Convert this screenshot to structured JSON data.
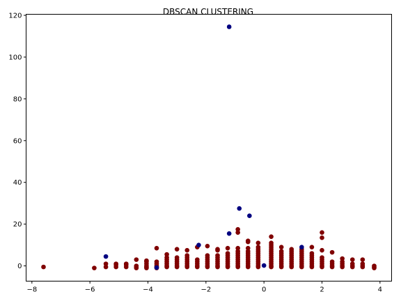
{
  "chart_data": {
    "type": "scatter",
    "title": "DBSCAN CLUSTERING",
    "xlabel": "",
    "ylabel": "",
    "xlim": [
      -8.2,
      4.4
    ],
    "ylim": [
      -7.3,
      120.5
    ],
    "xticks": [
      -8,
      -6,
      -4,
      -2,
      0,
      2,
      4
    ],
    "yticks": [
      0,
      20,
      40,
      60,
      80,
      100,
      120
    ],
    "xtick_labels": [
      "−8",
      "−6",
      "−4",
      "−2",
      "0",
      "2",
      "4"
    ],
    "ytick_labels": [
      "0",
      "20",
      "40",
      "60",
      "80",
      "100",
      "120"
    ],
    "grid": false,
    "legend": "none",
    "colors": {
      "cluster": "#800000",
      "noise": "#000080"
    },
    "series": [
      {
        "role": "cluster",
        "points": [
          [
            -7.6,
            -0.5
          ],
          [
            -5.85,
            -1
          ],
          [
            -5.45,
            -0.5
          ],
          [
            -5.45,
            1
          ],
          [
            -5.1,
            -0.5
          ],
          [
            -5.1,
            0.5
          ],
          [
            -5.1,
            1
          ],
          [
            -4.75,
            -0.5
          ],
          [
            -4.75,
            0.5
          ],
          [
            -4.75,
            1
          ],
          [
            -4.4,
            -1
          ],
          [
            -4.4,
            -0.5
          ],
          [
            -4.4,
            0
          ],
          [
            -4.4,
            3
          ],
          [
            -4.05,
            -1
          ],
          [
            -4.05,
            -0.5
          ],
          [
            -4.05,
            0
          ],
          [
            -4.05,
            1
          ],
          [
            -4.05,
            2
          ],
          [
            -4.05,
            2.5
          ],
          [
            -3.7,
            -1
          ],
          [
            -3.7,
            -0.5
          ],
          [
            -3.7,
            0
          ],
          [
            -3.7,
            1
          ],
          [
            -3.7,
            2
          ],
          [
            -3.7,
            8.5
          ],
          [
            -3.35,
            -0.5
          ],
          [
            -3.35,
            0
          ],
          [
            -3.35,
            1
          ],
          [
            -3.35,
            2
          ],
          [
            -3.35,
            3
          ],
          [
            -3.35,
            4
          ],
          [
            -3.35,
            5.5
          ],
          [
            -3.0,
            -0.5
          ],
          [
            -3.0,
            0
          ],
          [
            -3.0,
            1
          ],
          [
            -3.0,
            2
          ],
          [
            -3.0,
            3
          ],
          [
            -3.0,
            4
          ],
          [
            -3.0,
            8
          ],
          [
            -2.65,
            -0.5
          ],
          [
            -2.65,
            0
          ],
          [
            -2.65,
            1
          ],
          [
            -2.65,
            2
          ],
          [
            -2.65,
            3
          ],
          [
            -2.65,
            4
          ],
          [
            -2.65,
            5
          ],
          [
            -2.65,
            7.5
          ],
          [
            -2.3,
            -0.5
          ],
          [
            -2.3,
            0
          ],
          [
            -2.3,
            1
          ],
          [
            -2.3,
            2
          ],
          [
            -2.3,
            3
          ],
          [
            -2.3,
            9
          ],
          [
            -1.95,
            -0.5
          ],
          [
            -1.95,
            0
          ],
          [
            -1.95,
            1
          ],
          [
            -1.95,
            2
          ],
          [
            -1.95,
            3
          ],
          [
            -1.95,
            4
          ],
          [
            -1.95,
            5
          ],
          [
            -1.95,
            9.5
          ],
          [
            -1.6,
            -0.5
          ],
          [
            -1.6,
            0
          ],
          [
            -1.6,
            1
          ],
          [
            -1.6,
            2
          ],
          [
            -1.6,
            3
          ],
          [
            -1.6,
            4
          ],
          [
            -1.6,
            5
          ],
          [
            -1.6,
            7.5
          ],
          [
            -1.6,
            8
          ],
          [
            -1.25,
            -0.5
          ],
          [
            -1.25,
            0
          ],
          [
            -1.25,
            1
          ],
          [
            -1.25,
            2
          ],
          [
            -1.25,
            3
          ],
          [
            -1.25,
            4
          ],
          [
            -1.25,
            5
          ],
          [
            -1.25,
            6
          ],
          [
            -1.25,
            8.5
          ],
          [
            -0.9,
            -0.5
          ],
          [
            -0.9,
            0
          ],
          [
            -0.9,
            1
          ],
          [
            -0.9,
            2
          ],
          [
            -0.9,
            3
          ],
          [
            -0.9,
            4
          ],
          [
            -0.9,
            5
          ],
          [
            -0.9,
            6
          ],
          [
            -0.9,
            7
          ],
          [
            -0.9,
            8.5
          ],
          [
            -0.9,
            16
          ],
          [
            -0.9,
            17.5
          ],
          [
            -0.55,
            -0.5
          ],
          [
            -0.55,
            0
          ],
          [
            -0.55,
            1
          ],
          [
            -0.55,
            2
          ],
          [
            -0.55,
            3
          ],
          [
            -0.55,
            4
          ],
          [
            -0.55,
            5
          ],
          [
            -0.55,
            6
          ],
          [
            -0.55,
            7
          ],
          [
            -0.55,
            8.5
          ],
          [
            -0.55,
            11.5
          ],
          [
            -0.55,
            12
          ],
          [
            -0.2,
            -0.5
          ],
          [
            -0.2,
            0
          ],
          [
            -0.2,
            1
          ],
          [
            -0.2,
            2
          ],
          [
            -0.2,
            3
          ],
          [
            -0.2,
            4
          ],
          [
            -0.2,
            5
          ],
          [
            -0.2,
            6
          ],
          [
            -0.2,
            7
          ],
          [
            -0.2,
            8
          ],
          [
            -0.2,
            9
          ],
          [
            -0.2,
            11
          ],
          [
            0.25,
            -0.5
          ],
          [
            0.25,
            0
          ],
          [
            0.25,
            1
          ],
          [
            0.25,
            2
          ],
          [
            0.25,
            3
          ],
          [
            0.25,
            4
          ],
          [
            0.25,
            5
          ],
          [
            0.25,
            6
          ],
          [
            0.25,
            7
          ],
          [
            0.25,
            8
          ],
          [
            0.25,
            9
          ],
          [
            0.25,
            10
          ],
          [
            0.25,
            11
          ],
          [
            0.25,
            14
          ],
          [
            0.6,
            -0.5
          ],
          [
            0.6,
            0
          ],
          [
            0.6,
            1
          ],
          [
            0.6,
            2
          ],
          [
            0.6,
            3
          ],
          [
            0.6,
            4
          ],
          [
            0.6,
            5
          ],
          [
            0.6,
            6
          ],
          [
            0.6,
            7
          ],
          [
            0.6,
            9
          ],
          [
            0.95,
            -0.5
          ],
          [
            0.95,
            0
          ],
          [
            0.95,
            1
          ],
          [
            0.95,
            2
          ],
          [
            0.95,
            3
          ],
          [
            0.95,
            4
          ],
          [
            0.95,
            5
          ],
          [
            0.95,
            6
          ],
          [
            0.95,
            7
          ],
          [
            0.95,
            8
          ],
          [
            1.3,
            -0.5
          ],
          [
            1.3,
            0
          ],
          [
            1.3,
            1
          ],
          [
            1.3,
            2
          ],
          [
            1.3,
            3
          ],
          [
            1.3,
            4
          ],
          [
            1.3,
            5
          ],
          [
            1.3,
            6
          ],
          [
            1.3,
            7
          ],
          [
            1.3,
            8
          ],
          [
            1.65,
            -0.5
          ],
          [
            1.65,
            0
          ],
          [
            1.65,
            1
          ],
          [
            1.65,
            2
          ],
          [
            1.65,
            3
          ],
          [
            1.65,
            4
          ],
          [
            1.65,
            5
          ],
          [
            1.65,
            6
          ],
          [
            1.65,
            9
          ],
          [
            2.0,
            -0.5
          ],
          [
            2.0,
            0
          ],
          [
            2.0,
            1
          ],
          [
            2.0,
            2
          ],
          [
            2.0,
            3
          ],
          [
            2.0,
            4
          ],
          [
            2.0,
            7.5
          ],
          [
            2.0,
            13.5
          ],
          [
            2.0,
            16
          ],
          [
            2.35,
            -0.5
          ],
          [
            2.35,
            0
          ],
          [
            2.35,
            1
          ],
          [
            2.35,
            2
          ],
          [
            2.35,
            6.5
          ],
          [
            2.7,
            -0.5
          ],
          [
            2.7,
            0
          ],
          [
            2.7,
            1
          ],
          [
            2.7,
            2
          ],
          [
            2.7,
            3.5
          ],
          [
            3.05,
            -0.5
          ],
          [
            3.05,
            0
          ],
          [
            3.05,
            1
          ],
          [
            3.05,
            3
          ],
          [
            3.4,
            -0.5
          ],
          [
            3.4,
            0
          ],
          [
            3.4,
            1
          ],
          [
            3.4,
            3
          ],
          [
            3.8,
            -1
          ],
          [
            3.8,
            -0.5
          ],
          [
            3.8,
            0
          ]
        ]
      },
      {
        "role": "noise",
        "points": [
          [
            -1.2,
            114.5
          ],
          [
            -0.85,
            27.5
          ],
          [
            -0.5,
            24
          ],
          [
            -1.2,
            15.5
          ],
          [
            -2.25,
            10
          ],
          [
            -5.45,
            4.5
          ],
          [
            1.3,
            9
          ],
          [
            -3.7,
            -0.8
          ],
          [
            0.0,
            0.2
          ]
        ]
      }
    ]
  }
}
